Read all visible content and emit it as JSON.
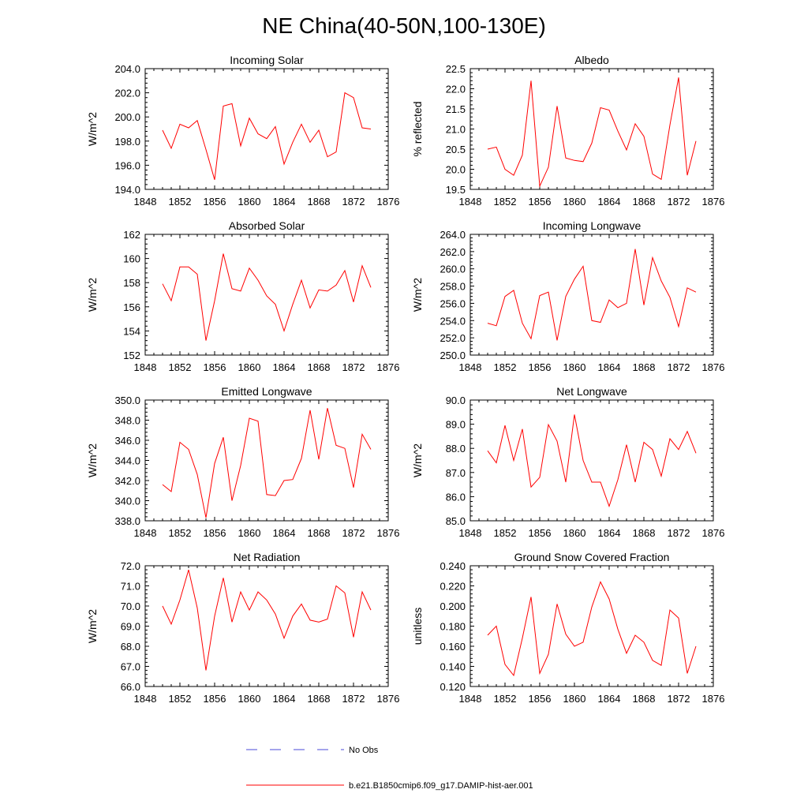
{
  "title": "NE China(40-50N,100-130E)",
  "legend": {
    "obs_label": "No Obs",
    "model_label": "b.e21.B1850cmip6.f09_g17.DAMIP-hist-aer.001",
    "obs_color": "#4a4ad8",
    "model_color": "#ff0000"
  },
  "chart_data": [
    {
      "type": "line",
      "title": "Incoming Solar",
      "ylabel": "W/m^2",
      "xlim": [
        1848,
        1876
      ],
      "xticks": [
        "1848",
        "1852",
        "1856",
        "1860",
        "1864",
        "1868",
        "1872",
        "1876"
      ],
      "ylim": [
        194,
        204
      ],
      "yticks": [
        "194.0",
        "196.0",
        "198.0",
        "200.0",
        "202.0",
        "204.0"
      ],
      "x": [
        1850,
        1851,
        1852,
        1853,
        1854,
        1855,
        1856,
        1857,
        1858,
        1859,
        1860,
        1861,
        1862,
        1863,
        1864,
        1865,
        1866,
        1867,
        1868,
        1869,
        1870,
        1871,
        1872,
        1873,
        1874
      ],
      "series": [
        {
          "name": "b.e21.B1850cmip6.f09_g17.DAMIP-hist-aer.001",
          "values": [
            198.9,
            197.4,
            199.4,
            199.1,
            199.7,
            197.3,
            194.8,
            200.9,
            201.1,
            197.6,
            199.9,
            198.6,
            198.2,
            199.2,
            196.1,
            197.9,
            199.4,
            197.9,
            198.9,
            196.7,
            197.1,
            202.0,
            201.6,
            199.1,
            199.0
          ]
        }
      ]
    },
    {
      "type": "line",
      "title": "Albedo",
      "ylabel": "% reflected",
      "xlim": [
        1848,
        1876
      ],
      "xticks": [
        "1848",
        "1852",
        "1856",
        "1860",
        "1864",
        "1868",
        "1872",
        "1876"
      ],
      "ylim": [
        19.5,
        22.5
      ],
      "yticks": [
        "19.5",
        "20.0",
        "20.5",
        "21.0",
        "21.5",
        "22.0",
        "22.5"
      ],
      "x": [
        1850,
        1851,
        1852,
        1853,
        1854,
        1855,
        1856,
        1857,
        1858,
        1859,
        1860,
        1861,
        1862,
        1863,
        1864,
        1865,
        1866,
        1867,
        1868,
        1869,
        1870,
        1871,
        1872,
        1873,
        1874
      ],
      "series": [
        {
          "name": "b.e21.B1850cmip6.f09_g17.DAMIP-hist-aer.001",
          "values": [
            20.5,
            20.55,
            20.0,
            19.85,
            20.35,
            22.2,
            19.58,
            20.05,
            21.57,
            20.28,
            20.22,
            20.19,
            20.65,
            21.53,
            21.47,
            20.95,
            20.48,
            21.13,
            20.82,
            19.88,
            19.75,
            21.1,
            22.28,
            19.85,
            20.7
          ]
        }
      ]
    },
    {
      "type": "line",
      "title": "Absorbed Solar",
      "ylabel": "W/m^2",
      "xlim": [
        1848,
        1876
      ],
      "xticks": [
        "1848",
        "1852",
        "1856",
        "1860",
        "1864",
        "1868",
        "1872",
        "1876"
      ],
      "ylim": [
        152,
        162
      ],
      "yticks": [
        "152",
        "154",
        "156",
        "158",
        "160",
        "162"
      ],
      "x": [
        1850,
        1851,
        1852,
        1853,
        1854,
        1855,
        1856,
        1857,
        1858,
        1859,
        1860,
        1861,
        1862,
        1863,
        1864,
        1865,
        1866,
        1867,
        1868,
        1869,
        1870,
        1871,
        1872,
        1873,
        1874
      ],
      "series": [
        {
          "name": "b.e21.B1850cmip6.f09_g17.DAMIP-hist-aer.001",
          "values": [
            157.9,
            156.5,
            159.3,
            159.3,
            158.7,
            153.2,
            156.5,
            160.4,
            157.5,
            157.3,
            159.2,
            158.2,
            156.9,
            156.2,
            154.0,
            156.2,
            158.2,
            155.9,
            157.4,
            157.3,
            157.8,
            159.0,
            156.4,
            159.4,
            157.6
          ]
        }
      ]
    },
    {
      "type": "line",
      "title": "Incoming Longwave",
      "ylabel": "W/m^2",
      "xlim": [
        1848,
        1876
      ],
      "xticks": [
        "1848",
        "1852",
        "1856",
        "1860",
        "1864",
        "1868",
        "1872",
        "1876"
      ],
      "ylim": [
        250,
        264
      ],
      "yticks": [
        "250.0",
        "252.0",
        "254.0",
        "256.0",
        "258.0",
        "260.0",
        "262.0",
        "264.0"
      ],
      "x": [
        1850,
        1851,
        1852,
        1853,
        1854,
        1855,
        1856,
        1857,
        1858,
        1859,
        1860,
        1861,
        1862,
        1863,
        1864,
        1865,
        1866,
        1867,
        1868,
        1869,
        1870,
        1871,
        1872,
        1873,
        1874
      ],
      "series": [
        {
          "name": "b.e21.B1850cmip6.f09_g17.DAMIP-hist-aer.001",
          "values": [
            253.7,
            253.4,
            256.8,
            257.5,
            253.7,
            251.9,
            256.9,
            257.3,
            251.7,
            256.8,
            258.8,
            260.3,
            254.0,
            253.8,
            256.4,
            255.5,
            256.0,
            262.3,
            255.8,
            261.3,
            258.6,
            256.7,
            253.3,
            257.8,
            257.3
          ]
        }
      ]
    },
    {
      "type": "line",
      "title": "Emitted Longwave",
      "ylabel": "W/m^2",
      "xlim": [
        1848,
        1876
      ],
      "xticks": [
        "1848",
        "1852",
        "1856",
        "1860",
        "1864",
        "1868",
        "1872",
        "1876"
      ],
      "ylim": [
        338,
        350
      ],
      "yticks": [
        "338.0",
        "340.0",
        "342.0",
        "344.0",
        "346.0",
        "348.0",
        "350.0"
      ],
      "x": [
        1850,
        1851,
        1852,
        1853,
        1854,
        1855,
        1856,
        1857,
        1858,
        1859,
        1860,
        1861,
        1862,
        1863,
        1864,
        1865,
        1866,
        1867,
        1868,
        1869,
        1870,
        1871,
        1872,
        1873,
        1874
      ],
      "series": [
        {
          "name": "b.e21.B1850cmip6.f09_g17.DAMIP-hist-aer.001",
          "values": [
            341.6,
            340.9,
            345.8,
            345.1,
            342.6,
            338.3,
            343.7,
            346.3,
            340.0,
            343.5,
            348.2,
            347.9,
            340.6,
            340.5,
            342.0,
            342.1,
            344.2,
            349.0,
            344.1,
            349.2,
            345.5,
            345.2,
            341.3,
            346.6,
            345.1
          ]
        }
      ]
    },
    {
      "type": "line",
      "title": "Net Longwave",
      "ylabel": "W/m^2",
      "xlim": [
        1848,
        1876
      ],
      "xticks": [
        "1848",
        "1852",
        "1856",
        "1860",
        "1864",
        "1868",
        "1872",
        "1876"
      ],
      "ylim": [
        85,
        90
      ],
      "yticks": [
        "85.0",
        "86.0",
        "87.0",
        "88.0",
        "89.0",
        "90.0"
      ],
      "x": [
        1850,
        1851,
        1852,
        1853,
        1854,
        1855,
        1856,
        1857,
        1858,
        1859,
        1860,
        1861,
        1862,
        1863,
        1864,
        1865,
        1866,
        1867,
        1868,
        1869,
        1870,
        1871,
        1872,
        1873,
        1874
      ],
      "series": [
        {
          "name": "b.e21.B1850cmip6.f09_g17.DAMIP-hist-aer.001",
          "values": [
            87.9,
            87.4,
            88.95,
            87.5,
            88.8,
            86.4,
            86.8,
            88.98,
            88.3,
            86.6,
            89.4,
            87.5,
            86.6,
            86.6,
            85.6,
            86.7,
            88.15,
            86.6,
            88.25,
            87.95,
            86.85,
            88.4,
            87.95,
            88.7,
            87.8
          ]
        }
      ]
    },
    {
      "type": "line",
      "title": "Net Radiation",
      "ylabel": "W/m^2",
      "xlim": [
        1848,
        1876
      ],
      "xticks": [
        "1848",
        "1852",
        "1856",
        "1860",
        "1864",
        "1868",
        "1872",
        "1876"
      ],
      "ylim": [
        66,
        72
      ],
      "yticks": [
        "66.0",
        "67.0",
        "68.0",
        "69.0",
        "70.0",
        "71.0",
        "72.0"
      ],
      "x": [
        1850,
        1851,
        1852,
        1853,
        1854,
        1855,
        1856,
        1857,
        1858,
        1859,
        1860,
        1861,
        1862,
        1863,
        1864,
        1865,
        1866,
        1867,
        1868,
        1869,
        1870,
        1871,
        1872,
        1873,
        1874
      ],
      "series": [
        {
          "name": "b.e21.B1850cmip6.f09_g17.DAMIP-hist-aer.001",
          "values": [
            70.0,
            69.1,
            70.3,
            71.8,
            69.9,
            66.8,
            69.5,
            71.4,
            69.2,
            70.7,
            69.8,
            70.7,
            70.3,
            69.6,
            68.4,
            69.5,
            70.1,
            69.3,
            69.2,
            69.35,
            71.0,
            70.65,
            68.45,
            70.7,
            69.8
          ]
        }
      ]
    },
    {
      "type": "line",
      "title": "Ground Snow Covered Fraction",
      "ylabel": "unitless",
      "xlim": [
        1848,
        1876
      ],
      "xticks": [
        "1848",
        "1852",
        "1856",
        "1860",
        "1864",
        "1868",
        "1872",
        "1876"
      ],
      "ylim": [
        0.12,
        0.24
      ],
      "yticks": [
        "0.120",
        "0.140",
        "0.160",
        "0.180",
        "0.200",
        "0.220",
        "0.240"
      ],
      "x": [
        1850,
        1851,
        1852,
        1853,
        1854,
        1855,
        1856,
        1857,
        1858,
        1859,
        1860,
        1861,
        1862,
        1863,
        1864,
        1865,
        1866,
        1867,
        1868,
        1869,
        1870,
        1871,
        1872,
        1873,
        1874
      ],
      "series": [
        {
          "name": "b.e21.B1850cmip6.f09_g17.DAMIP-hist-aer.001",
          "values": [
            0.171,
            0.18,
            0.142,
            0.131,
            0.168,
            0.209,
            0.133,
            0.152,
            0.202,
            0.172,
            0.16,
            0.164,
            0.199,
            0.224,
            0.207,
            0.177,
            0.153,
            0.171,
            0.164,
            0.146,
            0.141,
            0.196,
            0.188,
            0.133,
            0.16
          ]
        }
      ]
    }
  ]
}
